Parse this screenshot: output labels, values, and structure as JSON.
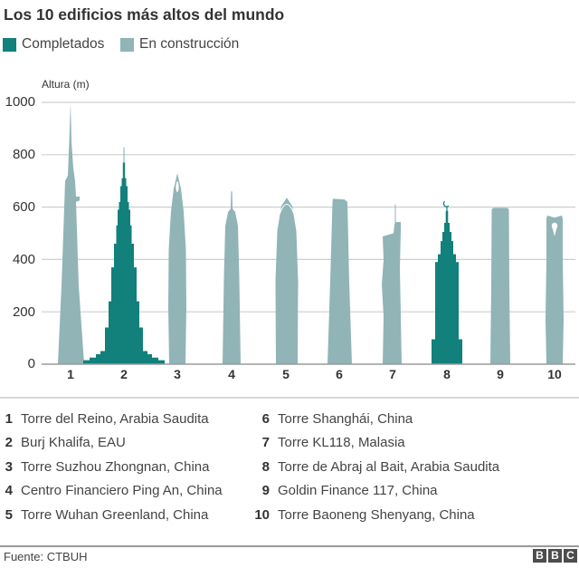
{
  "title": "Los 10 edificios más altos del mundo",
  "legend": {
    "completed": {
      "label": "Completados",
      "color": "#12807b"
    },
    "construction": {
      "label": "En construcción",
      "color": "#91b4b6"
    }
  },
  "axis": {
    "y_title": "Altura (m)",
    "yticks": [
      "1000",
      "800",
      "600",
      "400",
      "200",
      "0"
    ],
    "xticks": [
      "1",
      "2",
      "3",
      "4",
      "5",
      "6",
      "7",
      "8",
      "9",
      "10"
    ]
  },
  "buildings": [
    {
      "num": "1",
      "name": "Torre del Reino, Arabia Saudita"
    },
    {
      "num": "2",
      "name": "Burj Khalifa, EAU"
    },
    {
      "num": "3",
      "name": "Torre Suzhou Zhongnan, China"
    },
    {
      "num": "4",
      "name": "Centro Financiero Ping An, China"
    },
    {
      "num": "5",
      "name": "Torre Wuhan Greenland, China"
    },
    {
      "num": "6",
      "name": "Torre Shanghái, China"
    },
    {
      "num": "7",
      "name": "Torre KL118, Malasia"
    },
    {
      "num": "8",
      "name": "Torre de Abraj al Bait, Arabia Saudita"
    },
    {
      "num": "9",
      "name": "Goldin Finance 117, China"
    },
    {
      "num": "10",
      "name": "Torre Baoneng Shenyang, China"
    }
  ],
  "footer": {
    "source": "Fuente: CTBUH",
    "logo": [
      "B",
      "B",
      "C"
    ]
  },
  "chart_data": {
    "type": "bar",
    "title": "Los 10 edificios más altos del mundo",
    "xlabel": "",
    "ylabel": "Altura (m)",
    "ylim": [
      0,
      1000
    ],
    "yticks": [
      0,
      200,
      400,
      600,
      800,
      1000
    ],
    "grid": true,
    "legend": [
      "Completados",
      "En construcción"
    ],
    "legend_position": "top-left",
    "categories": [
      "1",
      "2",
      "3",
      "4",
      "5",
      "6",
      "7",
      "8",
      "9",
      "10"
    ],
    "labels": [
      "Torre del Reino, Arabia Saudita",
      "Burj Khalifa, EAU",
      "Torre Suzhou Zhongnan, China",
      "Centro Financiero Ping An, China",
      "Torre Wuhan Greenland, China",
      "Torre Shanghái, China",
      "Torre KL118, Malasia",
      "Torre de Abraj al Bait, Arabia Saudita",
      "Goldin Finance 117, China",
      "Torre Baoneng Shenyang, China"
    ],
    "values": [
      1000,
      828,
      729,
      660,
      636,
      632,
      610,
      601,
      597,
      568
    ],
    "status": [
      "En construcción",
      "Completados",
      "En construcción",
      "En construcción",
      "En construcción",
      "En construcción",
      "En construcción",
      "Completados",
      "En construcción",
      "En construcción"
    ]
  }
}
